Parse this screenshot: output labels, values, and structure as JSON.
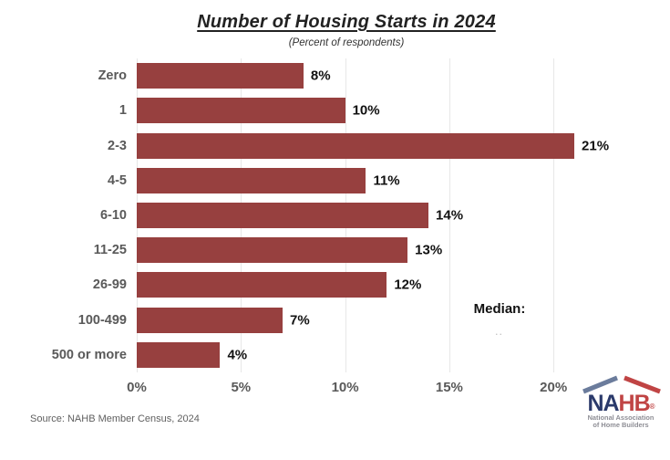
{
  "chart": {
    "title": "Number of Housing Starts in 2024",
    "subtitle": "(Percent of respondents)",
    "median_label": "Median:",
    "median_value": "..",
    "colors": {
      "bar": "#97403f",
      "gridline": "#e7e7e7",
      "category_label": "#595959",
      "value_label": "#111111",
      "logo_navy": "#2b3a6b",
      "logo_red": "#c04444",
      "logo_roof_blue": "#6b7c9c",
      "logo_gray": "#8e8e95"
    }
  },
  "chart_data": {
    "type": "bar",
    "orientation": "horizontal",
    "title": "Number of Housing Starts in 2024",
    "subtitle": "(Percent of respondents)",
    "categories": [
      "Zero",
      "1",
      "2-3",
      "4-5",
      "6-10",
      "11-25",
      "26-99",
      "100-499",
      "500 or more"
    ],
    "values": [
      8,
      10,
      21,
      11,
      14,
      13,
      12,
      7,
      4
    ],
    "value_labels": [
      "8%",
      "10%",
      "21%",
      "11%",
      "14%",
      "13%",
      "12%",
      "7%",
      "4%"
    ],
    "xlabel": "",
    "ylabel": "",
    "xlim": [
      0,
      23
    ],
    "x_ticks": [
      0,
      5,
      10,
      15,
      20
    ],
    "x_tick_labels": [
      "0%",
      "5%",
      "10%",
      "15%",
      "20%"
    ],
    "grid": "vertical-only",
    "legend": "none",
    "annotations": [
      {
        "text": "Median:",
        "value": ".."
      }
    ]
  },
  "footer": {
    "source": "Source: NAHB Member Census, 2024",
    "logo": {
      "name_left": "NA",
      "name_right": "HB",
      "reg": "®",
      "tagline_line1": "National Association",
      "tagline_line2": "of Home Builders"
    }
  }
}
